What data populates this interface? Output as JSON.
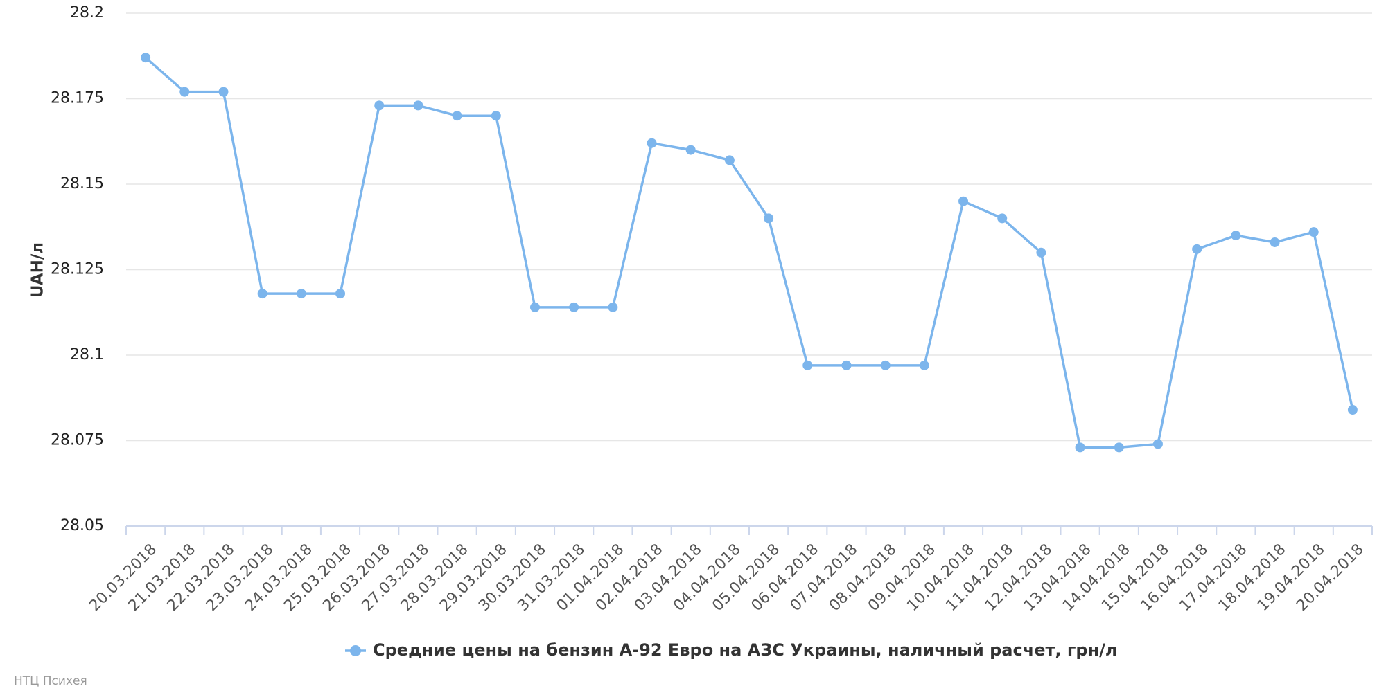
{
  "chart_data": {
    "type": "line",
    "y_label": "UAH/л",
    "credit": "НТЦ Психея",
    "categories": [
      "20.03.2018",
      "21.03.2018",
      "22.03.2018",
      "23.03.2018",
      "24.03.2018",
      "25.03.2018",
      "26.03.2018",
      "27.03.2018",
      "28.03.2018",
      "29.03.2018",
      "30.03.2018",
      "31.03.2018",
      "01.04.2018",
      "02.04.2018",
      "03.04.2018",
      "04.04.2018",
      "05.04.2018",
      "06.04.2018",
      "07.04.2018",
      "08.04.2018",
      "09.04.2018",
      "10.04.2018",
      "11.04.2018",
      "12.04.2018",
      "13.04.2018",
      "14.04.2018",
      "15.04.2018",
      "16.04.2018",
      "17.04.2018",
      "18.04.2018",
      "19.04.2018",
      "20.04.2018"
    ],
    "series": [
      {
        "name": "Средние цены на бензин А-92 Евро на АЗС Украины, наличный расчет, грн/л",
        "color": "#7cb5ec",
        "values": [
          28.187,
          28.177,
          28.177,
          28.118,
          28.118,
          28.118,
          28.173,
          28.173,
          28.17,
          28.17,
          28.114,
          28.114,
          28.114,
          28.162,
          28.16,
          28.157,
          28.14,
          28.097,
          28.097,
          28.097,
          28.097,
          28.145,
          28.14,
          28.13,
          28.073,
          28.073,
          28.074,
          28.131,
          28.135,
          28.133,
          28.136,
          28.084
        ]
      }
    ],
    "ylim": [
      28.05,
      28.2
    ],
    "yticks": [
      28.05,
      28.075,
      28.1,
      28.125,
      28.15,
      28.175,
      28.2
    ],
    "grid": true
  }
}
